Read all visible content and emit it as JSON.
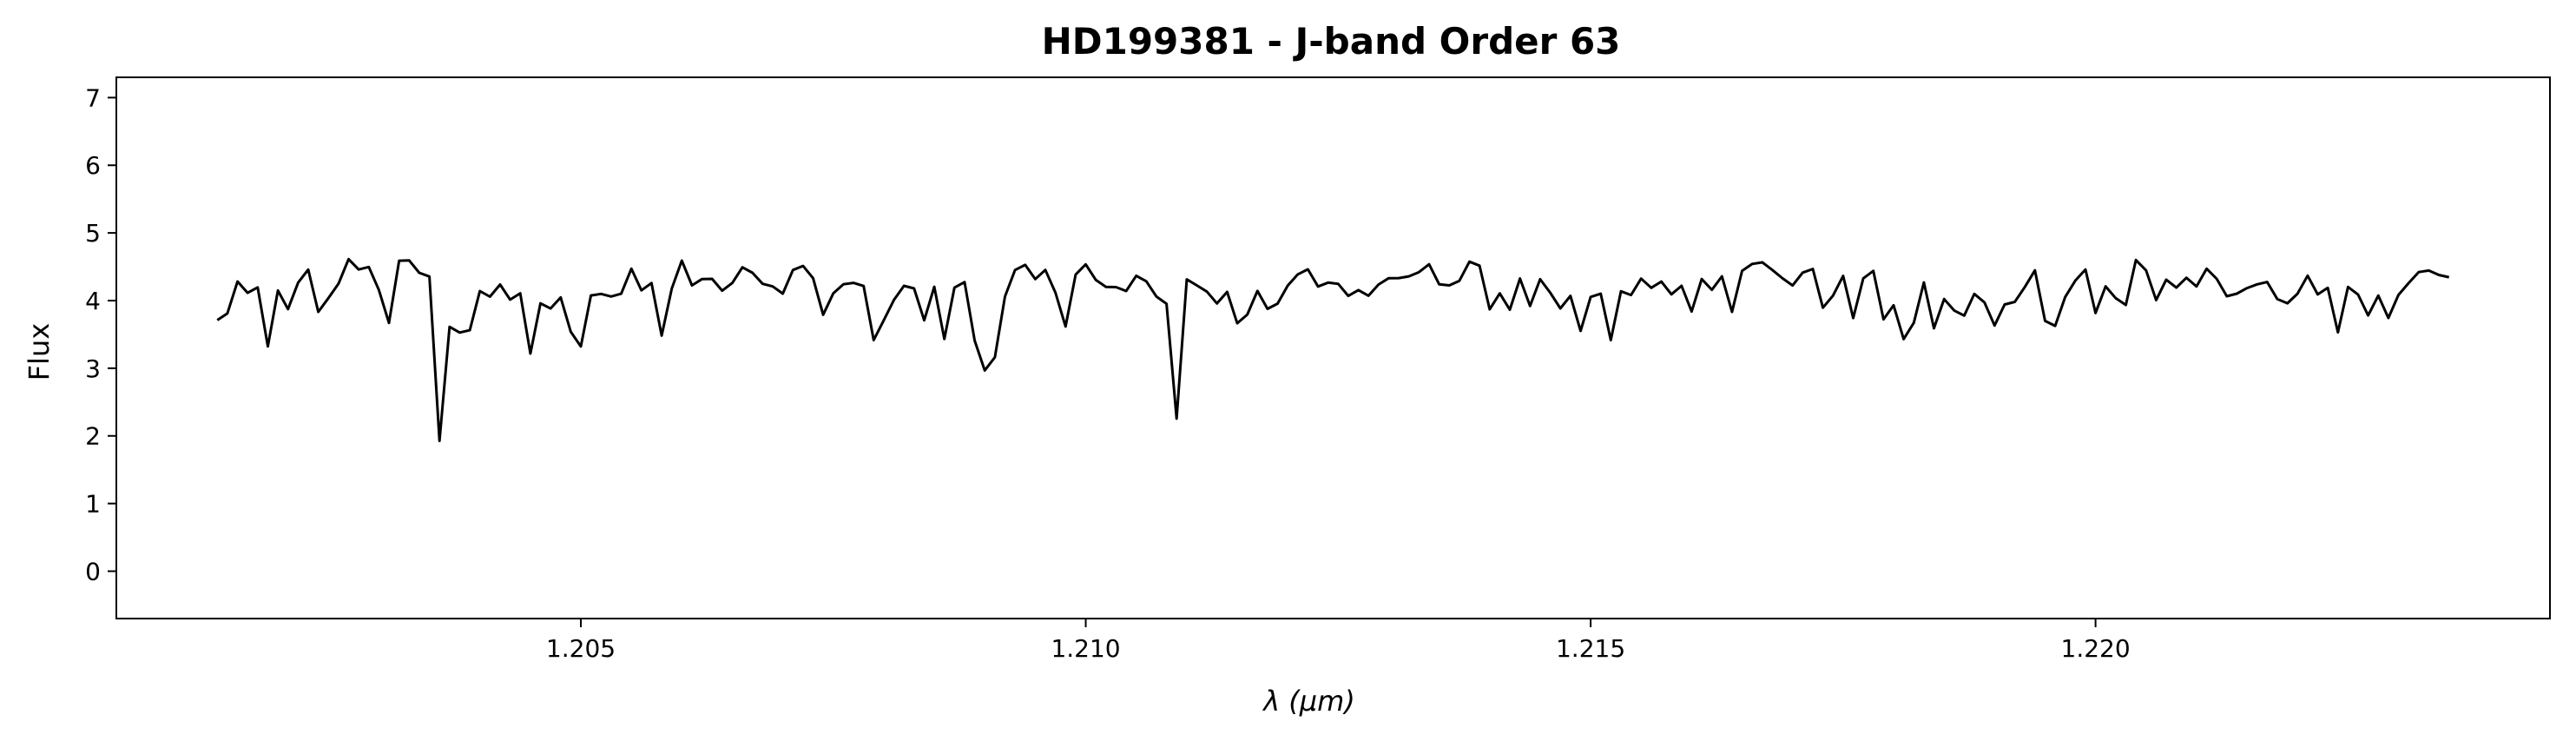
{
  "chart_data": {
    "type": "line",
    "title": "HD199381 - J-band Order 63",
    "xlabel": "λ (μm)",
    "ylabel": "Flux",
    "xlim": [
      1.2004,
      1.2245
    ],
    "ylim": [
      -0.7,
      7.3
    ],
    "x_ticks": [
      "1.205",
      "1.210",
      "1.215",
      "1.220"
    ],
    "y_ticks": [
      "0",
      "1",
      "2",
      "3",
      "4",
      "5",
      "6",
      "7"
    ],
    "grid": false,
    "line_color": "#000000",
    "series": [
      {
        "x_start": 1.2014,
        "x_end": 1.2235,
        "x_step": 0.0001,
        "continuum": 4.25,
        "absorption_lines": [
          {
            "x": 1.20145,
            "depth": 0.9
          },
          {
            "x": 1.20191,
            "depth": 0.85
          },
          {
            "x": 1.20208,
            "depth": 0.5
          },
          {
            "x": 1.20245,
            "depth": 0.7
          },
          {
            "x": 1.2031,
            "depth": 0.6
          },
          {
            "x": 1.2036,
            "depth": 2.3
          },
          {
            "x": 1.20376,
            "depth": 1.2
          },
          {
            "x": 1.20388,
            "depth": 0.9
          },
          {
            "x": 1.2045,
            "depth": 0.8
          },
          {
            "x": 1.20492,
            "depth": 0.9
          },
          {
            "x": 1.20502,
            "depth": 0.6
          },
          {
            "x": 1.2058,
            "depth": 0.8
          },
          {
            "x": 1.20615,
            "depth": 0.4
          },
          {
            "x": 1.20786,
            "depth": 0.7
          },
          {
            "x": 1.20795,
            "depth": 0.5
          },
          {
            "x": 1.20862,
            "depth": 0.7
          },
          {
            "x": 1.20895,
            "depth": 2.1
          },
          {
            "x": 1.2091,
            "depth": 0.7
          },
          {
            "x": 1.2098,
            "depth": 0.7
          },
          {
            "x": 1.21044,
            "depth": 0.6
          },
          {
            "x": 1.21088,
            "depth": 2.2
          },
          {
            "x": 1.21148,
            "depth": 0.5
          },
          {
            "x": 1.21264,
            "depth": 0.5
          },
          {
            "x": 1.21365,
            "depth": 0.4
          },
          {
            "x": 1.2149,
            "depth": 0.7
          },
          {
            "x": 1.216,
            "depth": 0.6
          },
          {
            "x": 1.21645,
            "depth": 0.4
          },
          {
            "x": 1.2179,
            "depth": 0.5
          },
          {
            "x": 1.2182,
            "depth": 0.5
          },
          {
            "x": 1.21905,
            "depth": 0.5
          },
          {
            "x": 1.2196,
            "depth": 0.5
          },
          {
            "x": 1.21948,
            "depth": 0.6
          },
          {
            "x": 1.2202,
            "depth": 0.4
          },
          {
            "x": 1.2224,
            "depth": 0.5
          },
          {
            "x": 1.22272,
            "depth": 0.8
          },
          {
            "x": 1.2229,
            "depth": 0.4
          }
        ]
      }
    ]
  }
}
